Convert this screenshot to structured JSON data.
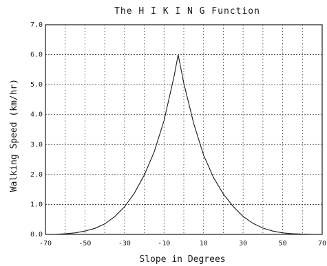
{
  "chart_data": {
    "type": "line",
    "title": "The H I K I N G Function",
    "xlabel": "Slope in Degrees",
    "ylabel": "Walking Speed (km/hr)",
    "xlim": [
      -70,
      70
    ],
    "ylim": [
      0,
      7
    ],
    "x_ticks": [
      -70,
      -50,
      -30,
      -10,
      10,
      30,
      50,
      70
    ],
    "x_tick_labels": [
      "-70",
      "-50",
      "-30",
      "-10",
      "10",
      "30",
      "50",
      "70"
    ],
    "y_ticks": [
      0,
      1,
      2,
      3,
      4,
      5,
      6,
      7
    ],
    "y_tick_labels": [
      "0.0",
      "1.0",
      "2.0",
      "3.0",
      "4.0",
      "5.0",
      "6.0",
      "7.0"
    ],
    "grid": true,
    "series": [
      {
        "x": [
          -70,
          -65,
          -60,
          -55,
          -50,
          -45,
          -40,
          -35,
          -30,
          -25,
          -20,
          -15,
          -10,
          -5,
          -2.86,
          0,
          5,
          10,
          15,
          20,
          25,
          30,
          35,
          40,
          45,
          50,
          55,
          60,
          65,
          70
        ],
        "y": [
          0.0,
          0.0,
          0.02,
          0.05,
          0.11,
          0.2,
          0.35,
          0.59,
          0.92,
          1.38,
          1.98,
          2.75,
          3.8,
          5.25,
          6.0,
          5.05,
          3.7,
          2.65,
          1.9,
          1.35,
          0.93,
          0.6,
          0.37,
          0.21,
          0.11,
          0.05,
          0.02,
          0.01,
          0.0,
          0.0
        ]
      }
    ],
    "colors": {
      "axis": "#1a1a1a",
      "grid": "#333333",
      "line": "#1a1a1a"
    }
  }
}
